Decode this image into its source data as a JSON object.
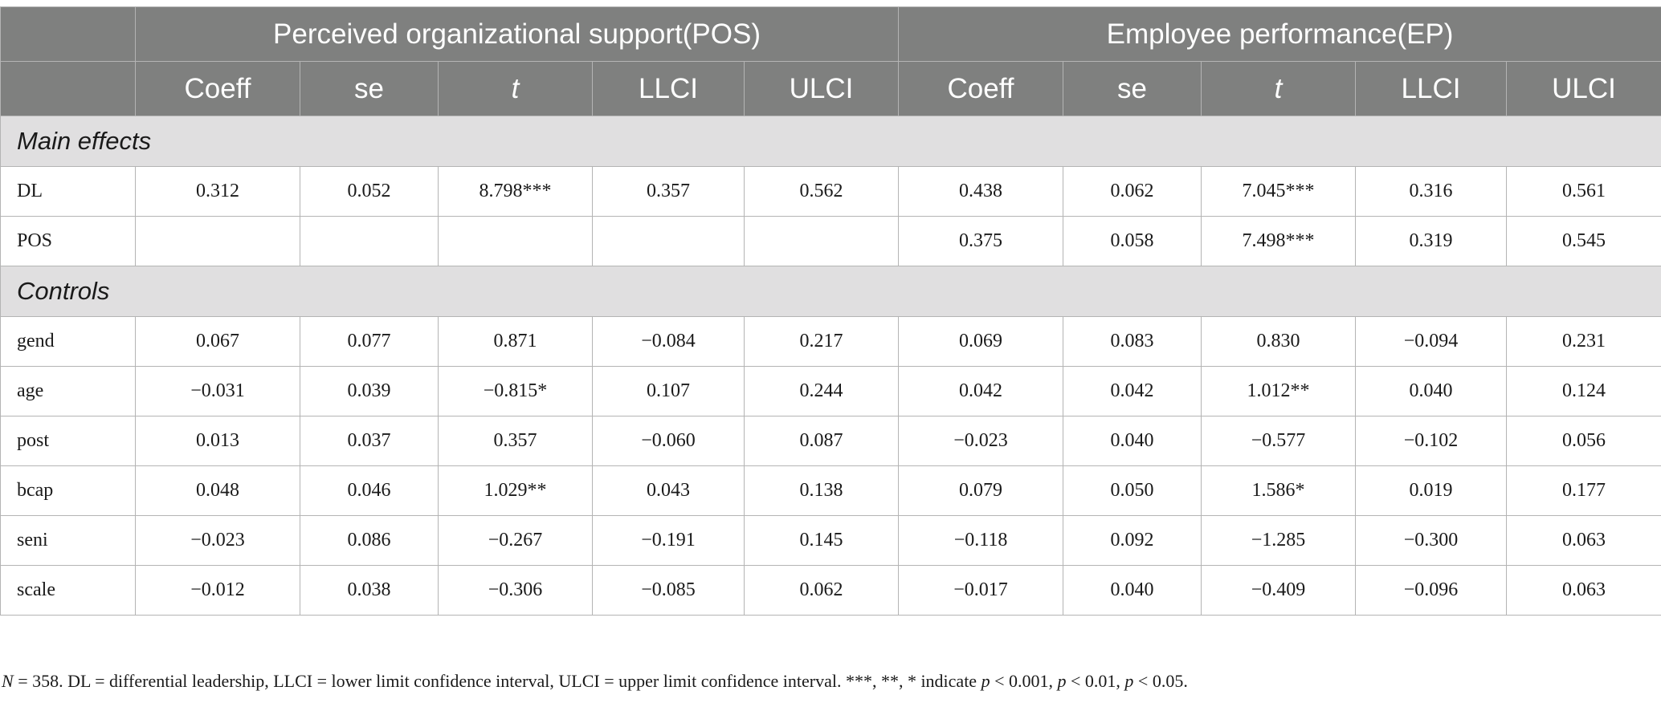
{
  "table": {
    "groups": [
      "Perceived organizational support(POS)",
      "Employee performance(EP)"
    ],
    "columns": [
      "Coeff",
      "se",
      "t",
      "LLCI",
      "ULCI",
      "Coeff",
      "se",
      "t",
      "LLCI",
      "ULCI"
    ],
    "sections": [
      {
        "title": "Main effects",
        "rows": [
          {
            "label": "DL",
            "cells": [
              "0.312",
              "0.052",
              "8.798***",
              "0.357",
              "0.562",
              "0.438",
              "0.062",
              "7.045***",
              "0.316",
              "0.561"
            ]
          },
          {
            "label": "POS",
            "cells": [
              "",
              "",
              "",
              "",
              "",
              "0.375",
              "0.058",
              "7.498***",
              "0.319",
              "0.545"
            ]
          }
        ]
      },
      {
        "title": "Controls",
        "rows": [
          {
            "label": "gend",
            "cells": [
              "0.067",
              "0.077",
              "0.871",
              "−0.084",
              "0.217",
              "0.069",
              "0.083",
              "0.830",
              "−0.094",
              "0.231"
            ]
          },
          {
            "label": "age",
            "cells": [
              "−0.031",
              "0.039",
              "−0.815*",
              "0.107",
              "0.244",
              "0.042",
              "0.042",
              "1.012**",
              "0.040",
              "0.124"
            ]
          },
          {
            "label": "post",
            "cells": [
              "0.013",
              "0.037",
              "0.357",
              "−0.060",
              "0.087",
              "−0.023",
              "0.040",
              "−0.577",
              "−0.102",
              "0.056"
            ]
          },
          {
            "label": "bcap",
            "cells": [
              "0.048",
              "0.046",
              "1.029**",
              "0.043",
              "0.138",
              "0.079",
              "0.050",
              "1.586*",
              "0.019",
              "0.177"
            ]
          },
          {
            "label": "seni",
            "cells": [
              "−0.023",
              "0.086",
              "−0.267",
              "−0.191",
              "0.145",
              "−0.118",
              "0.092",
              "−1.285",
              "−0.300",
              "0.063"
            ]
          },
          {
            "label": "scale",
            "cells": [
              "−0.012",
              "0.038",
              "−0.306",
              "−0.085",
              "0.062",
              "−0.017",
              "0.040",
              "−0.409",
              "−0.096",
              "0.063"
            ]
          }
        ]
      }
    ]
  },
  "footnote": {
    "n_var": "N",
    "n_text": " = 358. DL = differential leadership, LLCI = lower limit confidence interval, ULCI = upper limit confidence interval. ***, **, * indicate ",
    "p_var": "p",
    "p1": " < 0.001, ",
    "p2": " < 0.01, ",
    "p3": " < 0.05."
  }
}
